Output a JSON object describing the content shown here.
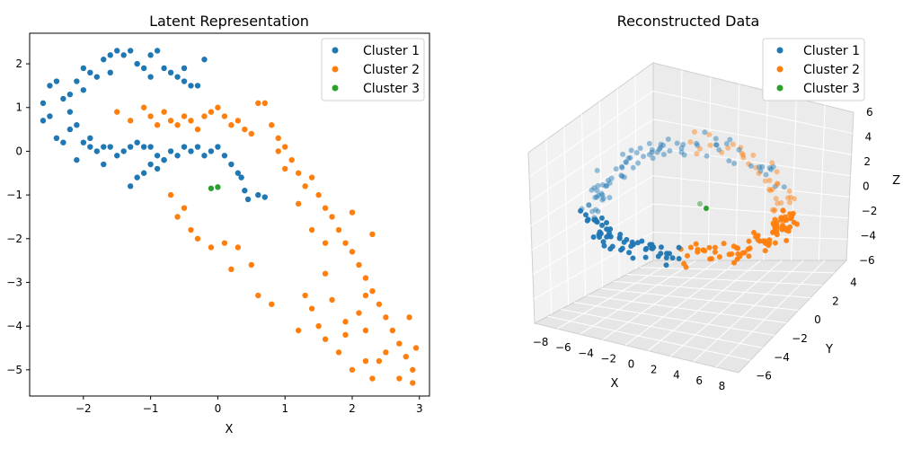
{
  "chart_data": [
    {
      "type": "scatter",
      "title": "Latent Representation",
      "xlabel": "X",
      "ylabel": "",
      "xlim": [
        -2.8,
        3.15
      ],
      "ylim": [
        -5.6,
        2.7
      ],
      "xticks": [
        -2,
        -1,
        0,
        1,
        2,
        3
      ],
      "yticks": [
        -5,
        -4,
        -3,
        -2,
        -1,
        0,
        1,
        2
      ],
      "xtick_labels": [
        "−2",
        "−1",
        "0",
        "1",
        "2",
        "3"
      ],
      "ytick_labels": [
        "−5",
        "−4",
        "−3",
        "−2",
        "−1",
        "0",
        "1",
        "2"
      ],
      "legend": "top-right",
      "grid": false,
      "series": [
        {
          "name": "Cluster 1",
          "color": "#1f77b4",
          "points": [
            [
              -2.5,
              1.5
            ],
            [
              -2.6,
              1.1
            ],
            [
              -2.4,
              1.6
            ],
            [
              -2.3,
              1.2
            ],
            [
              -2.2,
              1.3
            ],
            [
              -2.1,
              1.6
            ],
            [
              -2.0,
              1.9
            ],
            [
              -1.9,
              1.8
            ],
            [
              -1.8,
              1.7
            ],
            [
              -1.7,
              2.1
            ],
            [
              -1.6,
              2.2
            ],
            [
              -1.5,
              2.3
            ],
            [
              -1.4,
              2.2
            ],
            [
              -1.3,
              2.3
            ],
            [
              -1.2,
              2.0
            ],
            [
              -1.1,
              1.9
            ],
            [
              -1.0,
              2.2
            ],
            [
              -0.9,
              2.3
            ],
            [
              -0.8,
              1.9
            ],
            [
              -0.7,
              1.8
            ],
            [
              -0.6,
              1.7
            ],
            [
              -0.5,
              1.6
            ],
            [
              -0.4,
              1.5
            ],
            [
              -0.3,
              1.5
            ],
            [
              -2.6,
              0.7
            ],
            [
              -2.5,
              0.8
            ],
            [
              -2.4,
              0.3
            ],
            [
              -2.3,
              0.2
            ],
            [
              -2.2,
              0.5
            ],
            [
              -2.1,
              0.6
            ],
            [
              -2.0,
              0.2
            ],
            [
              -1.9,
              0.1
            ],
            [
              -1.8,
              0.0
            ],
            [
              -1.7,
              0.1
            ],
            [
              -1.6,
              0.1
            ],
            [
              -1.5,
              -0.1
            ],
            [
              -1.4,
              0.0
            ],
            [
              -1.3,
              0.1
            ],
            [
              -1.2,
              0.2
            ],
            [
              -1.1,
              0.1
            ],
            [
              -1.0,
              0.1
            ],
            [
              -0.9,
              -0.1
            ],
            [
              -0.8,
              -0.2
            ],
            [
              -0.7,
              0.0
            ],
            [
              -0.6,
              -0.1
            ],
            [
              -0.5,
              0.1
            ],
            [
              -0.4,
              0.0
            ],
            [
              -0.3,
              0.1
            ],
            [
              -0.2,
              -0.1
            ],
            [
              -0.1,
              0.0
            ],
            [
              0.0,
              0.1
            ],
            [
              0.1,
              -0.1
            ],
            [
              0.2,
              -0.3
            ],
            [
              0.3,
              -0.5
            ],
            [
              0.35,
              -0.6
            ],
            [
              -1.3,
              -0.8
            ],
            [
              -1.2,
              -0.6
            ],
            [
              -1.1,
              -0.5
            ],
            [
              -1.0,
              -0.3
            ],
            [
              -0.9,
              -0.4
            ],
            [
              -0.8,
              -0.2
            ],
            [
              0.4,
              -0.9
            ],
            [
              0.6,
              -1.0
            ],
            [
              0.7,
              -1.05
            ],
            [
              0.45,
              -1.1
            ],
            [
              -1.7,
              -0.3
            ],
            [
              -2.1,
              -0.2
            ],
            [
              -1.9,
              0.3
            ],
            [
              -2.0,
              1.4
            ],
            [
              -2.2,
              0.9
            ],
            [
              -1.6,
              1.8
            ],
            [
              -1.0,
              1.7
            ],
            [
              -0.5,
              1.9
            ],
            [
              -0.2,
              2.1
            ]
          ]
        },
        {
          "name": "Cluster 2",
          "color": "#ff7f0e",
          "points": [
            [
              -1.5,
              0.9
            ],
            [
              -1.3,
              0.7
            ],
            [
              -1.1,
              1.0
            ],
            [
              -1.0,
              0.8
            ],
            [
              -0.9,
              0.6
            ],
            [
              -0.8,
              0.9
            ],
            [
              -0.7,
              0.7
            ],
            [
              -0.6,
              0.6
            ],
            [
              -0.5,
              0.8
            ],
            [
              -0.4,
              0.7
            ],
            [
              -0.3,
              0.5
            ],
            [
              -0.2,
              0.8
            ],
            [
              -0.1,
              0.9
            ],
            [
              0.0,
              1.0
            ],
            [
              0.1,
              0.8
            ],
            [
              0.2,
              0.6
            ],
            [
              0.3,
              0.7
            ],
            [
              0.4,
              0.5
            ],
            [
              0.5,
              0.4
            ],
            [
              0.6,
              1.1
            ],
            [
              0.7,
              1.1
            ],
            [
              0.8,
              0.6
            ],
            [
              0.9,
              0.3
            ],
            [
              1.0,
              0.1
            ],
            [
              1.1,
              -0.2
            ],
            [
              1.2,
              -0.5
            ],
            [
              1.3,
              -0.8
            ],
            [
              1.4,
              -0.6
            ],
            [
              1.5,
              -1.0
            ],
            [
              1.6,
              -1.3
            ],
            [
              1.7,
              -1.5
            ],
            [
              1.8,
              -1.8
            ],
            [
              1.9,
              -2.1
            ],
            [
              2.0,
              -2.3
            ],
            [
              2.1,
              -2.6
            ],
            [
              2.2,
              -2.9
            ],
            [
              2.3,
              -3.2
            ],
            [
              2.4,
              -3.5
            ],
            [
              2.5,
              -3.8
            ],
            [
              2.6,
              -4.1
            ],
            [
              2.7,
              -4.4
            ],
            [
              2.8,
              -4.7
            ],
            [
              2.9,
              -5.0
            ],
            [
              2.85,
              -3.8
            ],
            [
              2.95,
              -4.5
            ],
            [
              -0.7,
              -1.0
            ],
            [
              -0.6,
              -1.5
            ],
            [
              -0.5,
              -1.3
            ],
            [
              -0.4,
              -1.8
            ],
            [
              -0.3,
              -2.0
            ],
            [
              -0.1,
              -2.2
            ],
            [
              0.1,
              -2.1
            ],
            [
              0.3,
              -2.2
            ],
            [
              0.2,
              -2.7
            ],
            [
              0.5,
              -2.6
            ],
            [
              0.6,
              -3.3
            ],
            [
              0.8,
              -3.5
            ],
            [
              1.3,
              -3.3
            ],
            [
              1.4,
              -3.6
            ],
            [
              1.5,
              -4.0
            ],
            [
              1.6,
              -4.3
            ],
            [
              1.8,
              -4.6
            ],
            [
              1.9,
              -4.2
            ],
            [
              2.0,
              -5.0
            ],
            [
              2.2,
              -4.8
            ],
            [
              2.3,
              -5.2
            ],
            [
              1.2,
              -4.1
            ],
            [
              1.7,
              -3.4
            ],
            [
              1.9,
              -3.9
            ],
            [
              2.2,
              -4.1
            ],
            [
              2.4,
              -4.8
            ],
            [
              2.7,
              -5.2
            ],
            [
              2.9,
              -5.3
            ],
            [
              1.0,
              -0.4
            ],
            [
              1.6,
              -2.1
            ],
            [
              2.1,
              -3.7
            ],
            [
              2.5,
              -4.6
            ],
            [
              1.4,
              -1.8
            ],
            [
              2.0,
              -1.4
            ],
            [
              2.3,
              -1.9
            ],
            [
              0.9,
              0.0
            ],
            [
              1.2,
              -1.2
            ],
            [
              1.6,
              -2.8
            ],
            [
              2.2,
              -3.3
            ]
          ]
        },
        {
          "name": "Cluster 3",
          "color": "#2ca02c",
          "points": [
            [
              -0.1,
              -0.85
            ],
            [
              0.0,
              -0.82
            ]
          ]
        }
      ]
    },
    {
      "type": "scatter",
      "title": "Reconstructed Data",
      "xlabel": "X",
      "ylabel": "Y",
      "zlabel": "Z",
      "xlim": [
        -9,
        9
      ],
      "ylim": [
        -7,
        5
      ],
      "zlim": [
        -6,
        6
      ],
      "xticks": [
        -8,
        -6,
        -4,
        -2,
        0,
        2,
        4,
        6,
        8
      ],
      "yticks": [
        -6,
        -4,
        -2,
        0,
        2,
        4
      ],
      "zticks": [
        -6,
        -4,
        -2,
        0,
        2,
        4,
        6
      ],
      "xtick_labels": [
        "−8",
        "−6",
        "−4",
        "−2",
        "0",
        "2",
        "4",
        "6",
        "8"
      ],
      "ytick_labels": [
        "−6",
        "−4",
        "−2",
        "0",
        "2",
        "4"
      ],
      "ztick_labels": [
        "−6",
        "−4",
        "−2",
        "0",
        "2",
        "4",
        "6"
      ],
      "legend": "top-right",
      "grid": true,
      "series": [
        {
          "name": "Cluster 1",
          "color": "#1f77b4"
        },
        {
          "name": "Cluster 2",
          "color": "#ff7f0e"
        },
        {
          "name": "Cluster 3",
          "color": "#2ca02c"
        }
      ]
    }
  ]
}
